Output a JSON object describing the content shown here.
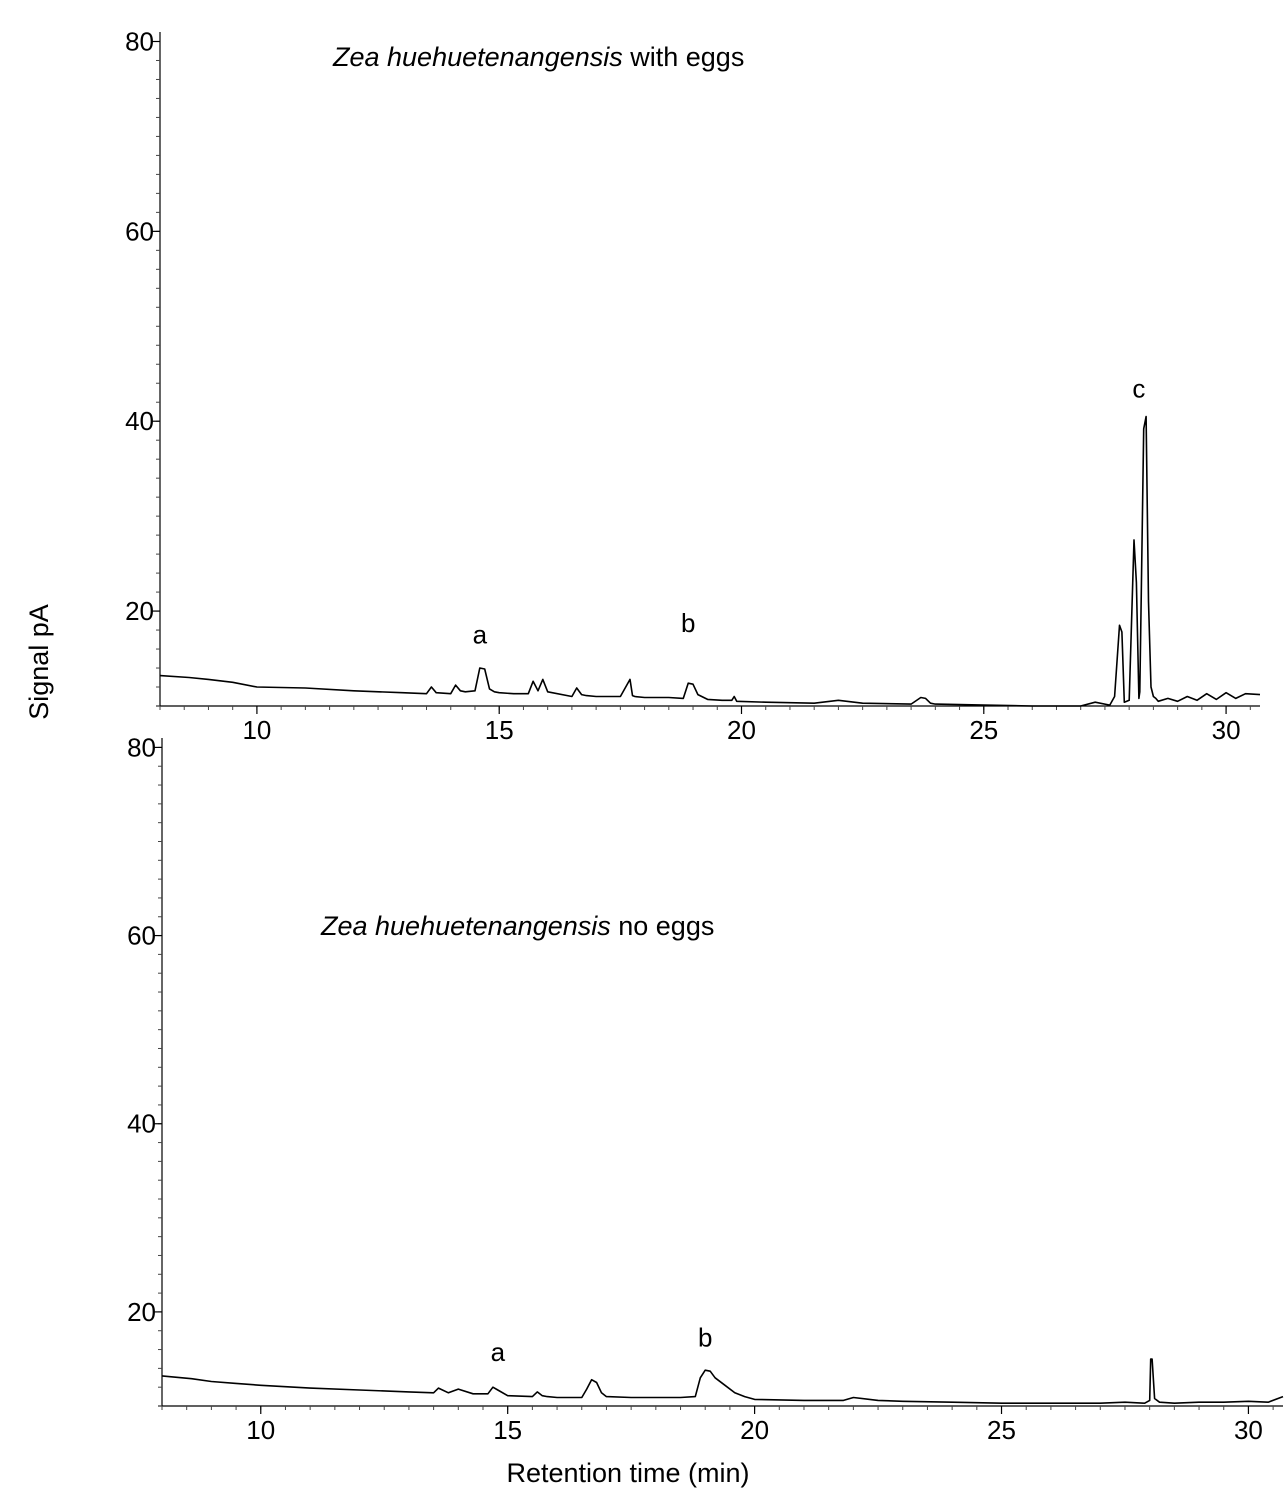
{
  "figure": {
    "ylabel": "Signal pA",
    "xlabel": "Retention time (min)"
  },
  "chart_data": [
    {
      "type": "line",
      "title_italic": "Zea huehuetenangensis",
      "title_rest": " with eggs",
      "xlabel": "",
      "ylabel": "Signal pA",
      "xlim": [
        8,
        30.7
      ],
      "ylim": [
        10,
        81
      ],
      "xticks": [
        10,
        15,
        20,
        25,
        30
      ],
      "yticks": [
        20,
        40,
        60,
        80
      ],
      "grid": false,
      "annotations": [
        {
          "text": "a",
          "x": 14.6,
          "y": 16.6
        },
        {
          "text": "b",
          "x": 18.9,
          "y": 17.8
        },
        {
          "text": "c",
          "x": 28.2,
          "y": 42.5
        }
      ],
      "series": [
        {
          "x": [
            8.0,
            8.6,
            9.0,
            9.5,
            10.0,
            11.0,
            12.0,
            13.0,
            13.5,
            13.6,
            13.7,
            14.0,
            14.1,
            14.2,
            14.3,
            14.5,
            14.6,
            14.7,
            14.8,
            14.9,
            15.0,
            15.3,
            15.6,
            15.7,
            15.8,
            15.9,
            16.0,
            16.5,
            16.6,
            16.7,
            16.8,
            17.0,
            17.5,
            17.7,
            17.75,
            17.8,
            18.0,
            18.5,
            18.8,
            18.9,
            19.0,
            19.1,
            19.3,
            19.6,
            19.8,
            19.85,
            19.9,
            20.5,
            21.5,
            22.0,
            22.5,
            23.5,
            23.7,
            23.8,
            23.9,
            24.0,
            25.0,
            26.0,
            27.0,
            27.3,
            27.6,
            27.7,
            27.8,
            27.85,
            27.9,
            28.0,
            28.1,
            28.15,
            28.2,
            28.22,
            28.25,
            28.3,
            28.35,
            28.4,
            28.45,
            28.5,
            28.55,
            28.6,
            28.8,
            29.0,
            29.2,
            29.4,
            29.6,
            29.8,
            30.0,
            30.2,
            30.4,
            30.7
          ],
          "y": [
            13.2,
            13.0,
            12.8,
            12.5,
            12.0,
            11.9,
            11.6,
            11.4,
            11.3,
            12.0,
            11.4,
            11.3,
            12.2,
            11.6,
            11.5,
            11.6,
            14.0,
            13.9,
            11.8,
            11.5,
            11.4,
            11.3,
            11.3,
            12.6,
            11.6,
            12.8,
            11.5,
            11.0,
            11.9,
            11.2,
            11.1,
            11.0,
            11.0,
            12.8,
            11.1,
            11.0,
            10.9,
            10.9,
            10.8,
            12.4,
            12.3,
            11.2,
            10.7,
            10.6,
            10.6,
            11.0,
            10.5,
            10.4,
            10.3,
            10.6,
            10.3,
            10.2,
            10.9,
            10.8,
            10.3,
            10.2,
            10.1,
            10.0,
            10.0,
            10.4,
            10.1,
            11.0,
            18.5,
            17.8,
            10.4,
            10.6,
            27.5,
            23.0,
            10.8,
            11.5,
            22.0,
            39.2,
            40.5,
            21.0,
            12.0,
            11.0,
            10.8,
            10.5,
            10.8,
            10.5,
            11.0,
            10.6,
            11.3,
            10.7,
            11.4,
            10.8,
            11.3,
            11.2
          ]
        }
      ]
    },
    {
      "type": "line",
      "title_italic": "Zea huehuetenangensis",
      "title_rest": " no eggs",
      "xlabel": "Retention time (min)",
      "ylabel": "Signal pA",
      "xlim": [
        8,
        30.7
      ],
      "ylim": [
        10,
        81
      ],
      "xticks": [
        10,
        15,
        20,
        25,
        30
      ],
      "yticks": [
        20,
        40,
        60,
        80
      ],
      "grid": false,
      "annotations": [
        {
          "text": "a",
          "x": 14.8,
          "y": 14.8
        },
        {
          "text": "b",
          "x": 19.0,
          "y": 16.3
        }
      ],
      "series": [
        {
          "x": [
            8.0,
            8.6,
            9.0,
            9.5,
            10.0,
            11.0,
            12.0,
            13.0,
            13.5,
            13.6,
            13.8,
            14.0,
            14.3,
            14.6,
            14.7,
            14.8,
            15.0,
            15.5,
            15.6,
            15.7,
            15.8,
            16.0,
            16.5,
            16.6,
            16.7,
            16.8,
            16.9,
            17.0,
            17.5,
            18.0,
            18.5,
            18.8,
            18.9,
            19.0,
            19.1,
            19.2,
            19.4,
            19.6,
            19.8,
            20.0,
            21.0,
            21.8,
            22.0,
            22.5,
            23.0,
            24.0,
            25.0,
            26.0,
            27.0,
            27.5,
            27.9,
            28.0,
            28.02,
            28.05,
            28.1,
            28.2,
            28.5,
            29.0,
            29.5,
            30.0,
            30.4,
            30.7
          ],
          "y": [
            13.2,
            12.9,
            12.6,
            12.4,
            12.2,
            11.9,
            11.7,
            11.5,
            11.4,
            11.9,
            11.4,
            11.8,
            11.3,
            11.3,
            12.0,
            11.7,
            11.1,
            11.0,
            11.5,
            11.1,
            11.0,
            10.9,
            10.9,
            11.8,
            12.8,
            12.5,
            11.4,
            11.0,
            10.9,
            10.9,
            10.9,
            11.0,
            13.0,
            13.8,
            13.7,
            13.0,
            12.2,
            11.4,
            11.0,
            10.7,
            10.6,
            10.6,
            10.9,
            10.6,
            10.5,
            10.4,
            10.3,
            10.3,
            10.3,
            10.4,
            10.3,
            10.6,
            15.0,
            15.0,
            10.8,
            10.4,
            10.3,
            10.4,
            10.4,
            10.5,
            10.4,
            11.0
          ]
        }
      ]
    }
  ]
}
